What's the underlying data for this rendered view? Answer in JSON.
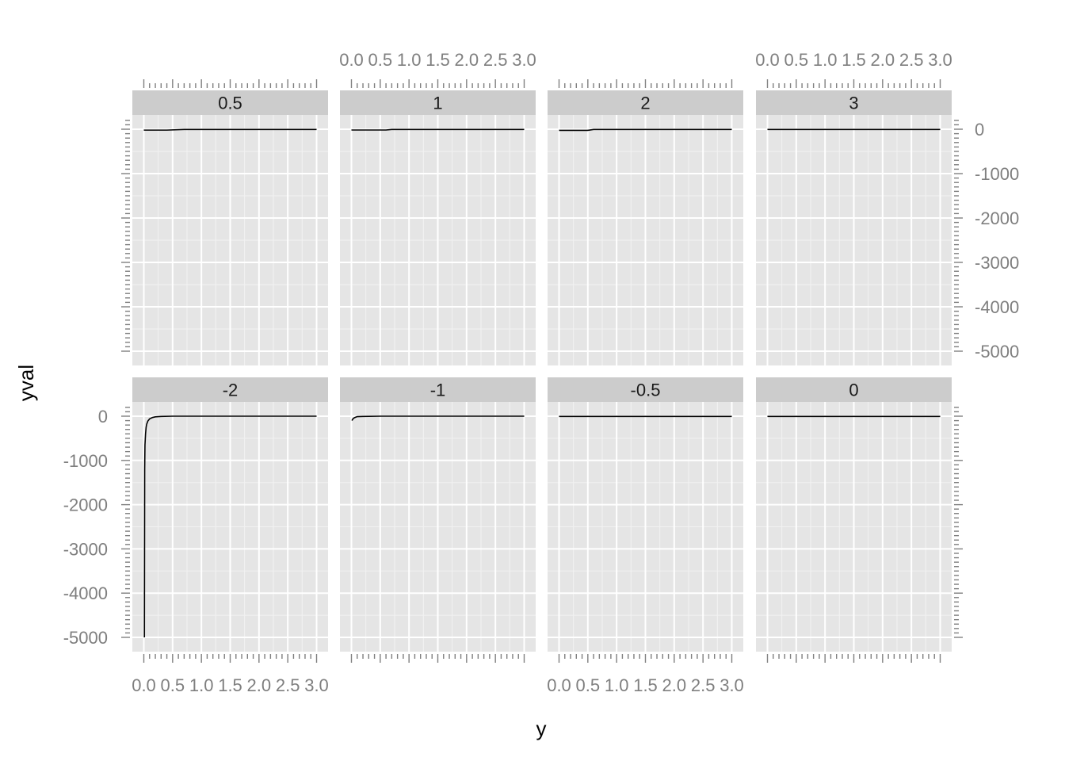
{
  "chart_data": {
    "type": "line",
    "xlabel": "y",
    "ylabel": "yval",
    "xlim": [
      0,
      3
    ],
    "ylim": [
      -5000,
      0
    ],
    "x_ticks": [
      "0.0",
      "0.5",
      "1.0",
      "1.5",
      "2.0",
      "2.5",
      "3.0"
    ],
    "y_ticks": [
      "0",
      "-1000",
      "-2000",
      "-3000",
      "-4000",
      "-5000"
    ],
    "x_tick_values": [
      0,
      0.5,
      1,
      1.5,
      2,
      2.5,
      3
    ],
    "y_tick_values": [
      0,
      -1000,
      -2000,
      -3000,
      -4000,
      -5000
    ],
    "grid": true,
    "line_color": "#000000",
    "panel_background": "#e5e5e5",
    "strip_background": "#cccccc",
    "panels": [
      {
        "label": "0.5",
        "x": [
          0,
          0.4,
          0.7,
          1.0,
          1.5,
          2.0,
          2.5,
          3.0
        ],
        "y": [
          -20,
          -20,
          -5,
          -5,
          -5,
          -5,
          -5,
          -5
        ]
      },
      {
        "label": "1",
        "x": [
          0,
          0.3,
          0.6,
          0.7,
          1.0,
          1.5,
          2.0,
          2.5,
          3.0
        ],
        "y": [
          -18,
          -18,
          -18,
          -5,
          -5,
          -5,
          -5,
          -5,
          -5
        ]
      },
      {
        "label": "2",
        "x": [
          0,
          0.3,
          0.5,
          0.6,
          1.0,
          1.5,
          2.0,
          2.5,
          3.0
        ],
        "y": [
          -25,
          -25,
          -25,
          -5,
          -5,
          -5,
          -5,
          -5,
          -5
        ]
      },
      {
        "label": "3",
        "x": [
          0,
          0.5,
          1.0,
          1.5,
          2.0,
          2.5,
          3.0
        ],
        "y": [
          -5,
          -5,
          -5,
          -5,
          -5,
          -5,
          -5
        ]
      },
      {
        "label": "-2",
        "x": [
          0.01,
          0.015,
          0.02,
          0.03,
          0.04,
          0.05,
          0.07,
          0.1,
          0.15,
          0.2,
          0.3,
          0.5,
          1.0,
          1.5,
          2.0,
          2.5,
          3.0
        ],
        "y": [
          -5000,
          -1200,
          -650,
          -400,
          -250,
          -180,
          -110,
          -60,
          -30,
          -15,
          -5,
          0,
          0,
          0,
          0,
          0,
          0
        ]
      },
      {
        "label": "-1",
        "x": [
          0.01,
          0.02,
          0.05,
          0.1,
          0.2,
          0.5,
          1.0,
          1.5,
          2.0,
          2.5,
          3.0
        ],
        "y": [
          -100,
          -70,
          -35,
          -10,
          -5,
          0,
          0,
          0,
          0,
          0,
          0
        ]
      },
      {
        "label": "-0.5",
        "x": [
          0,
          0.5,
          1.0,
          1.5,
          2.0,
          2.5,
          3.0
        ],
        "y": [
          -5,
          -5,
          -5,
          -5,
          -5,
          -5,
          -5
        ]
      },
      {
        "label": "0",
        "x": [
          0,
          0.5,
          1.0,
          1.5,
          2.0,
          2.5,
          3.0
        ],
        "y": [
          -5,
          -5,
          -5,
          -5,
          -5,
          -5,
          -5
        ]
      }
    ]
  }
}
